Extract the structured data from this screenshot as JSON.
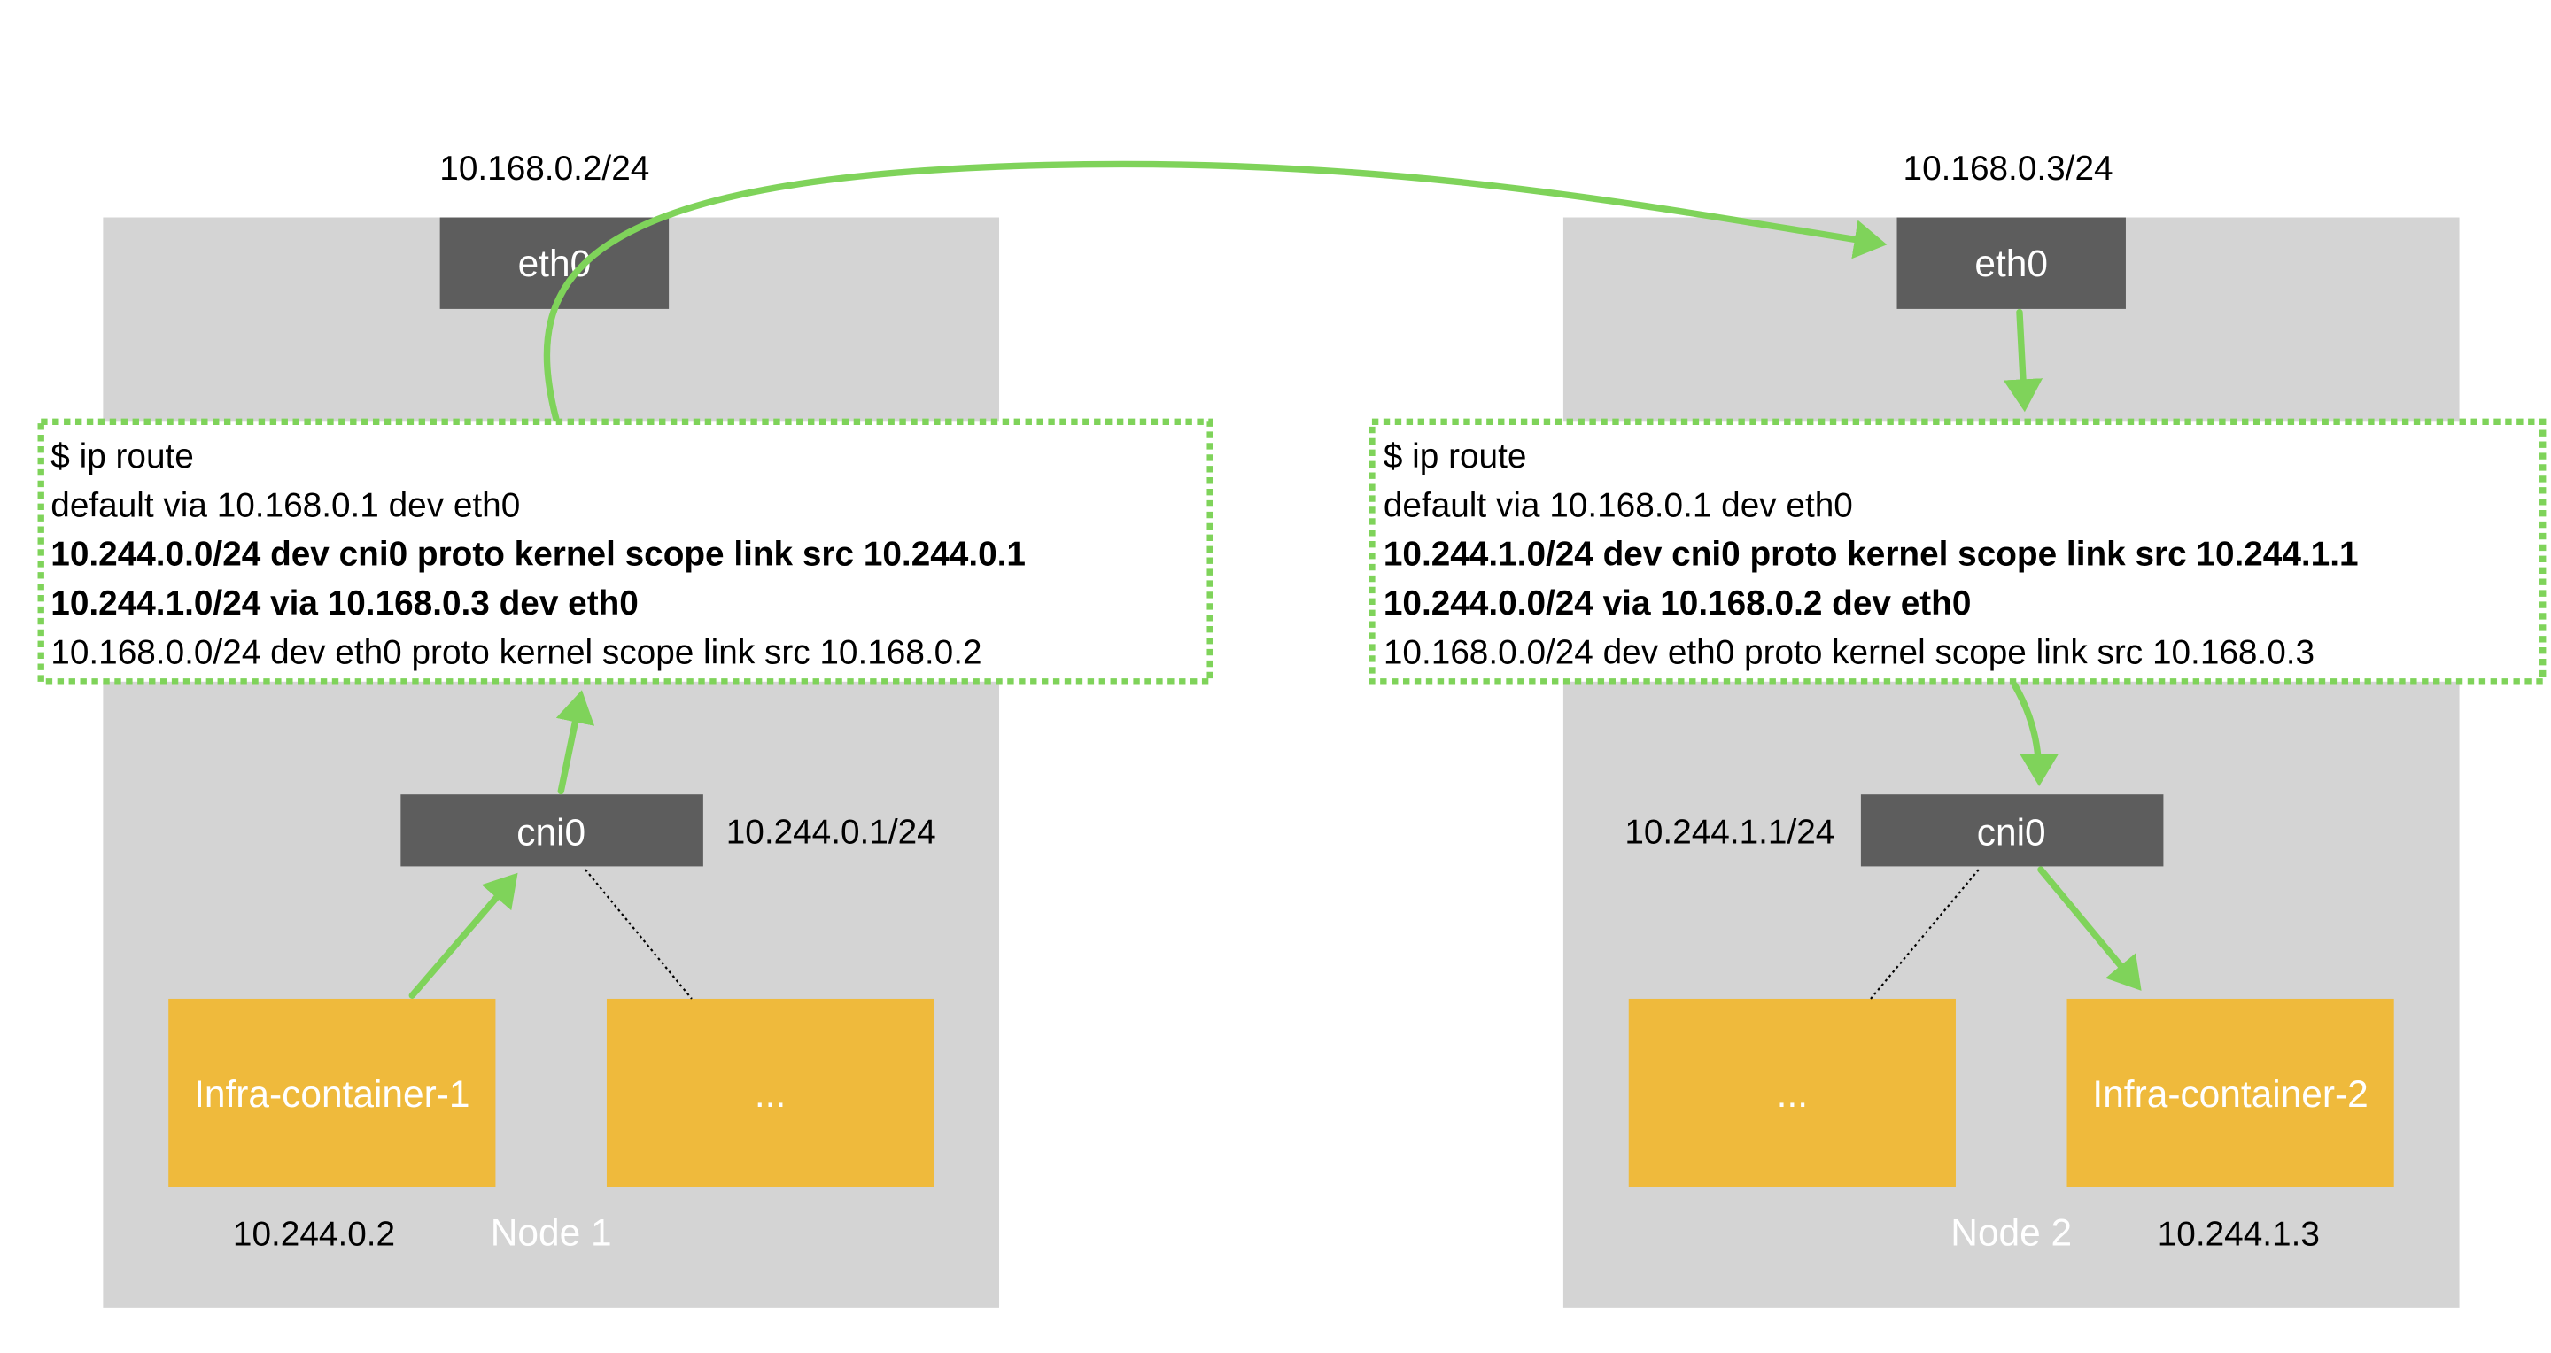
{
  "colors": {
    "node_bg": "#d4d4d4",
    "iface_bg": "#5d5d5d",
    "container_bg": "#efba3c",
    "arrow": "#7fd35a",
    "route_border": "#7fd35a"
  },
  "nodes": [
    {
      "label": "Node 1",
      "eth0": {
        "name": "eth0",
        "ip": "10.168.0.2/24"
      },
      "cni0": {
        "name": "cni0",
        "ip": "10.244.0.1/24"
      },
      "route": [
        "$ ip route",
        "default via 10.168.0.1 dev eth0",
        "10.244.0.0/24 dev cni0 proto kernel scope link src 10.244.0.1",
        "10.244.1.0/24 via 10.168.0.3 dev eth0",
        "10.168.0.0/24 dev eth0 proto kernel scope link src 10.168.0.2"
      ],
      "containers": [
        {
          "name": "Infra-container-1",
          "ip": "10.244.0.2"
        },
        {
          "name": "..."
        }
      ]
    },
    {
      "label": "Node 2",
      "eth0": {
        "name": "eth0",
        "ip": "10.168.0.3/24"
      },
      "cni0": {
        "name": "cni0",
        "ip": "10.244.1.1/24"
      },
      "route": [
        "$ ip route",
        "default via 10.168.0.1 dev eth0",
        "10.244.1.0/24 dev cni0 proto kernel scope link src 10.244.1.1",
        "10.244.0.0/24 via 10.168.0.2 dev eth0",
        "10.168.0.0/24 dev eth0 proto kernel scope link src 10.168.0.3"
      ],
      "containers": [
        {
          "name": "..."
        },
        {
          "name": "Infra-container-2",
          "ip": "10.244.1.3"
        }
      ]
    }
  ]
}
